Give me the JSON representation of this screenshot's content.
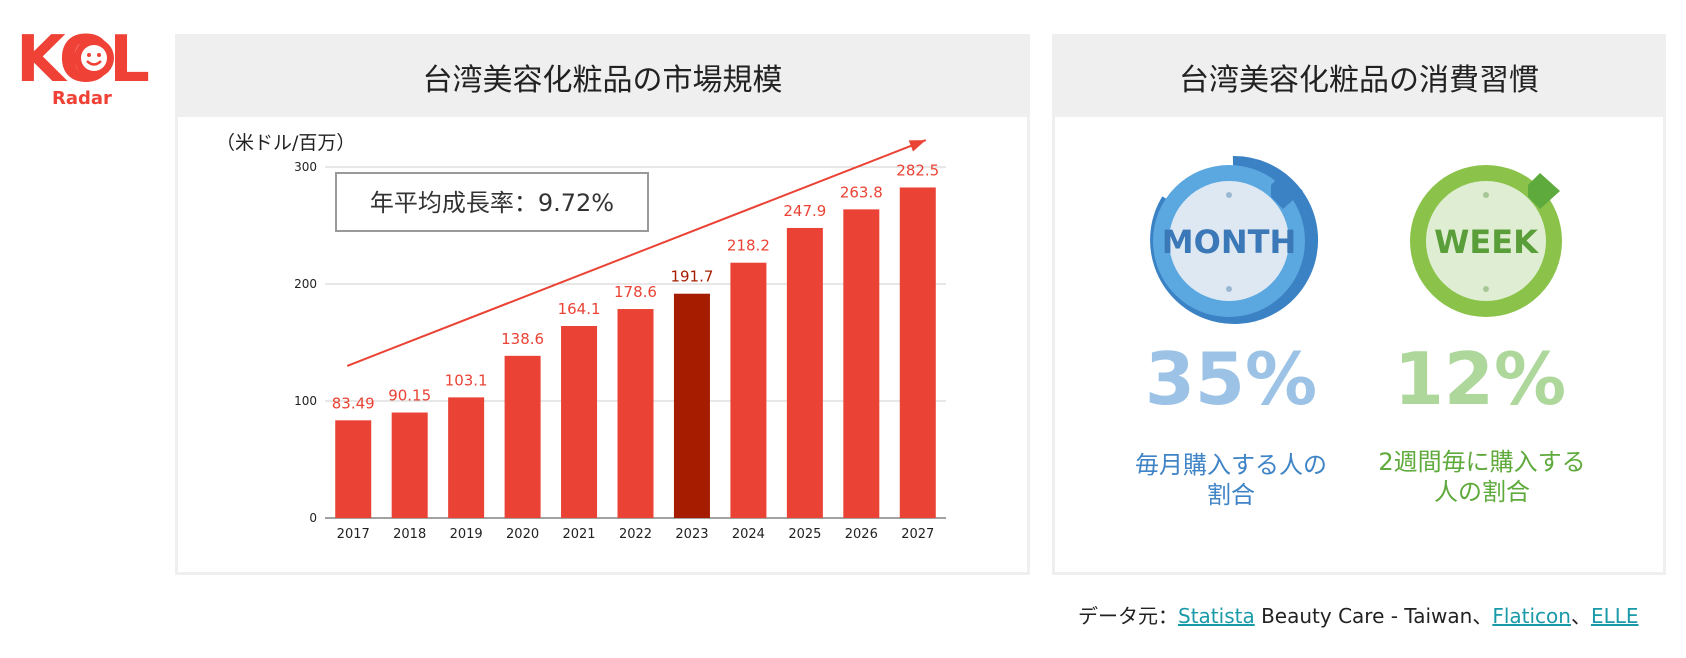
{
  "logo": {
    "text": "KOL",
    "subtext": "Radar"
  },
  "left_panel": {
    "title": "台湾美容化粧品の市場規模"
  },
  "right_panel": {
    "title": "台湾美容化粧品の消費習慣"
  },
  "chart_data": {
    "type": "bar",
    "title": "台湾美容化粧品の市場規模",
    "unit_label": "（米ドル/百万）",
    "annotation": "年平均成長率：9.72%",
    "categories": [
      "2017",
      "2018",
      "2019",
      "2020",
      "2021",
      "2022",
      "2023",
      "2024",
      "2025",
      "2026",
      "2027"
    ],
    "values": [
      83.49,
      90.15,
      103.1,
      138.6,
      164.1,
      178.6,
      191.7,
      218.2,
      247.9,
      263.8,
      282.5
    ],
    "value_labels": [
      "83.49",
      "90.15",
      "103.1",
      "138.6",
      "164.1",
      "178.6",
      "191.7",
      "218.2",
      "247.9",
      "263.8",
      "282.5"
    ],
    "highlight_category": "2023",
    "yticks": [
      0,
      100,
      200,
      300
    ],
    "ylim": [
      0,
      300
    ],
    "grid": true,
    "colors": {
      "bar": "#ea4335",
      "highlight": "#a61c00",
      "label": "#ea4335",
      "highlight_label": "#a61c00",
      "trend_arrow": "#ea4335"
    }
  },
  "habits": [
    {
      "icon": "month-calendar-icon",
      "icon_text": "MONTH",
      "percent": "35%",
      "line1": "毎月購入する人の",
      "line2": "割合"
    },
    {
      "icon": "week-calendar-icon",
      "icon_text": "WEEK",
      "percent": "12%",
      "line1": "2週間毎に購入する",
      "line2": "人の割合"
    }
  ],
  "source": {
    "prefix": "データ元：",
    "link1": "Statista",
    "text1": " Beauty Care - Taiwan、",
    "link2": "Flaticon",
    "sep": "、",
    "link3": "ELLE"
  }
}
